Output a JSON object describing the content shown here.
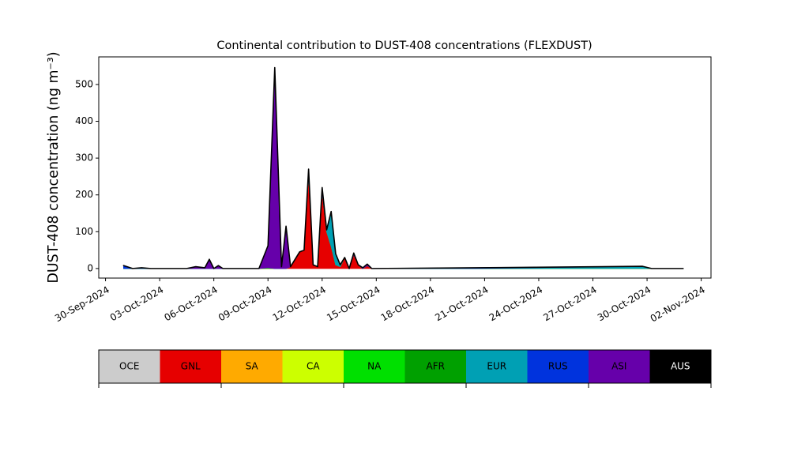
{
  "chart_data": {
    "type": "stacked_area",
    "title": "Continental contribution to DUST-408 concentrations (FLEXDUST)",
    "y_label": "DUST-408 concentration (ng m⁻³)",
    "x": [
      "2024-10-01T00:00",
      "2024-10-01T12:00",
      "2024-10-02T00:00",
      "2024-10-02T12:00",
      "2024-10-04T12:00",
      "2024-10-05T00:00",
      "2024-10-05T12:00",
      "2024-10-05T18:00",
      "2024-10-06T00:00",
      "2024-10-06T06:00",
      "2024-10-06T12:00",
      "2024-10-08T12:00",
      "2024-10-09T00:00",
      "2024-10-09T09:00",
      "2024-10-09T18:00",
      "2024-10-10T00:00",
      "2024-10-10T06:00",
      "2024-10-10T18:00",
      "2024-10-11T00:00",
      "2024-10-11T06:00",
      "2024-10-11T12:00",
      "2024-10-11T18:00",
      "2024-10-12T00:00",
      "2024-10-12T06:00",
      "2024-10-12T12:00",
      "2024-10-12T18:00",
      "2024-10-13T00:00",
      "2024-10-13T06:00",
      "2024-10-13T12:00",
      "2024-10-13T18:00",
      "2024-10-14T00:00",
      "2024-10-14T06:00",
      "2024-10-14T12:00",
      "2024-10-14T18:00",
      "2024-10-20T12:00",
      "2024-10-29T18:00",
      "2024-10-30T06:00",
      "2024-11-01T00:00"
    ],
    "series": [
      {
        "name": "OCE",
        "color": "#cccccc",
        "values": [
          0,
          0,
          0,
          0,
          0,
          0,
          0,
          0,
          0,
          0,
          0,
          0,
          0,
          0,
          0,
          0,
          0,
          0,
          0,
          0,
          0,
          0,
          0,
          0,
          0,
          0,
          0,
          0,
          0,
          0,
          0,
          0,
          0,
          0,
          0,
          0,
          0,
          0
        ]
      },
      {
        "name": "GNL",
        "color": "#e60000",
        "values": [
          0,
          0,
          0,
          0,
          0,
          0,
          0,
          0,
          0,
          0,
          0,
          0,
          0,
          0,
          0,
          0,
          5,
          45,
          50,
          260,
          10,
          5,
          210,
          100,
          60,
          10,
          5,
          30,
          0,
          38,
          10,
          0,
          8,
          0,
          0,
          0,
          0,
          0
        ]
      },
      {
        "name": "SA",
        "color": "#ffaa00",
        "values": [
          0,
          0,
          0,
          0,
          0,
          0,
          0,
          0,
          0,
          0,
          0,
          0,
          0,
          0,
          0,
          0,
          0,
          0,
          0,
          0,
          0,
          0,
          0,
          0,
          0,
          0,
          0,
          0,
          0,
          0,
          0,
          0,
          0,
          0,
          0,
          0,
          0,
          0
        ]
      },
      {
        "name": "CA",
        "color": "#ccff00",
        "values": [
          0,
          0,
          0,
          0,
          0,
          0,
          0,
          0,
          0,
          0,
          0,
          0,
          0,
          0,
          0,
          0,
          0,
          0,
          0,
          0,
          0,
          0,
          0,
          0,
          0,
          0,
          0,
          0,
          0,
          0,
          0,
          0,
          0,
          0,
          0,
          0,
          0,
          0
        ]
      },
      {
        "name": "NA",
        "color": "#00e000",
        "values": [
          0,
          0,
          0,
          0,
          0,
          0,
          0,
          0,
          0,
          0,
          0,
          0,
          2,
          0,
          0,
          0,
          0,
          0,
          0,
          0,
          0,
          0,
          0,
          0,
          0,
          0,
          0,
          0,
          0,
          0,
          0,
          0,
          0,
          0,
          0,
          0,
          0,
          0
        ]
      },
      {
        "name": "AFR",
        "color": "#00a000",
        "values": [
          0,
          0,
          0,
          0,
          0,
          0,
          0,
          0,
          0,
          0,
          0,
          0,
          0,
          0,
          0,
          0,
          0,
          0,
          0,
          0,
          0,
          0,
          0,
          0,
          0,
          0,
          0,
          0,
          0,
          0,
          0,
          0,
          0,
          0,
          0,
          0,
          0,
          0
        ]
      },
      {
        "name": "EUR",
        "color": "#00a0b4",
        "values": [
          0,
          0,
          0,
          0,
          0,
          0,
          0,
          0,
          0,
          0,
          0,
          0,
          0,
          0,
          0,
          0,
          0,
          0,
          0,
          0,
          0,
          0,
          0,
          5,
          95,
          30,
          5,
          0,
          0,
          0,
          0,
          0,
          0,
          0,
          0,
          6,
          0,
          0
        ]
      },
      {
        "name": "RUS",
        "color": "#0033dd",
        "values": [
          8,
          0,
          2,
          0,
          0,
          0,
          0,
          0,
          0,
          0,
          0,
          0,
          0,
          0,
          0,
          0,
          0,
          0,
          0,
          0,
          0,
          0,
          0,
          0,
          0,
          0,
          0,
          0,
          0,
          0,
          0,
          0,
          0,
          0,
          2,
          0,
          0,
          0
        ]
      },
      {
        "name": "ASI",
        "color": "#6600aa",
        "values": [
          0,
          0,
          0,
          0,
          0,
          5,
          2,
          25,
          0,
          8,
          0,
          0,
          60,
          546,
          5,
          115,
          0,
          0,
          0,
          10,
          0,
          0,
          10,
          0,
          0,
          0,
          0,
          0,
          0,
          4,
          0,
          2,
          4,
          0,
          0,
          0,
          0,
          0
        ]
      },
      {
        "name": "AUS",
        "color": "#000000",
        "values": [
          0,
          0,
          0,
          0,
          0,
          0,
          0,
          0,
          0,
          0,
          0,
          0,
          0,
          0,
          0,
          0,
          0,
          0,
          0,
          0,
          0,
          0,
          0,
          0,
          0,
          0,
          0,
          0,
          0,
          0,
          0,
          0,
          0,
          0,
          0,
          0,
          0,
          0
        ]
      }
    ],
    "xlim": [
      "2024-09-29T15:00",
      "2024-11-02T13:00"
    ],
    "xticks": [
      {
        "value": "2024-09-30",
        "label": "30-Sep-2024"
      },
      {
        "value": "2024-10-03",
        "label": "03-Oct-2024"
      },
      {
        "value": "2024-10-06",
        "label": "06-Oct-2024"
      },
      {
        "value": "2024-10-09",
        "label": "09-Oct-2024"
      },
      {
        "value": "2024-10-12",
        "label": "12-Oct-2024"
      },
      {
        "value": "2024-10-15",
        "label": "15-Oct-2024"
      },
      {
        "value": "2024-10-18",
        "label": "18-Oct-2024"
      },
      {
        "value": "2024-10-21",
        "label": "21-Oct-2024"
      },
      {
        "value": "2024-10-24",
        "label": "24-Oct-2024"
      },
      {
        "value": "2024-10-27",
        "label": "27-Oct-2024"
      },
      {
        "value": "2024-10-30",
        "label": "30-Oct-2024"
      },
      {
        "value": "2024-11-02",
        "label": "02-Nov-2024"
      }
    ],
    "ylim": [
      -26,
      575
    ],
    "yticks": [
      0,
      100,
      200,
      300,
      400,
      500
    ],
    "legend": "colorbar-bottom"
  }
}
